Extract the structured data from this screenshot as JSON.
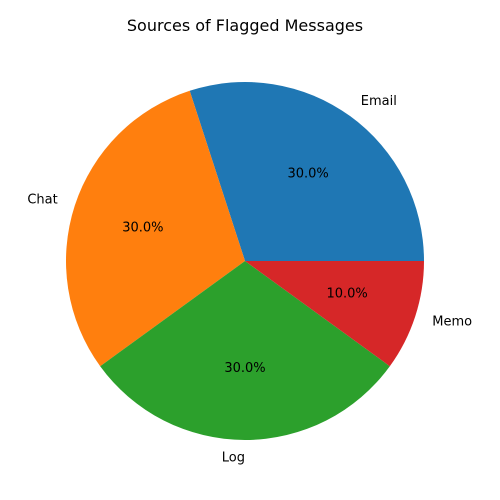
{
  "chart_data": {
    "type": "pie",
    "title": "Sources of Flagged Messages",
    "categories": [
      "Email",
      "Chat",
      "Log",
      "Memo"
    ],
    "values": [
      30,
      30,
      30,
      10
    ],
    "percent_labels": [
      "30.0%",
      "30.0%",
      "30.0%",
      "10.0%"
    ],
    "colors": [
      "#1f77b4",
      "#ff7f0e",
      "#2ca02c",
      "#d62728"
    ],
    "start_angle_deg": 0,
    "direction": "counterclockwise"
  }
}
